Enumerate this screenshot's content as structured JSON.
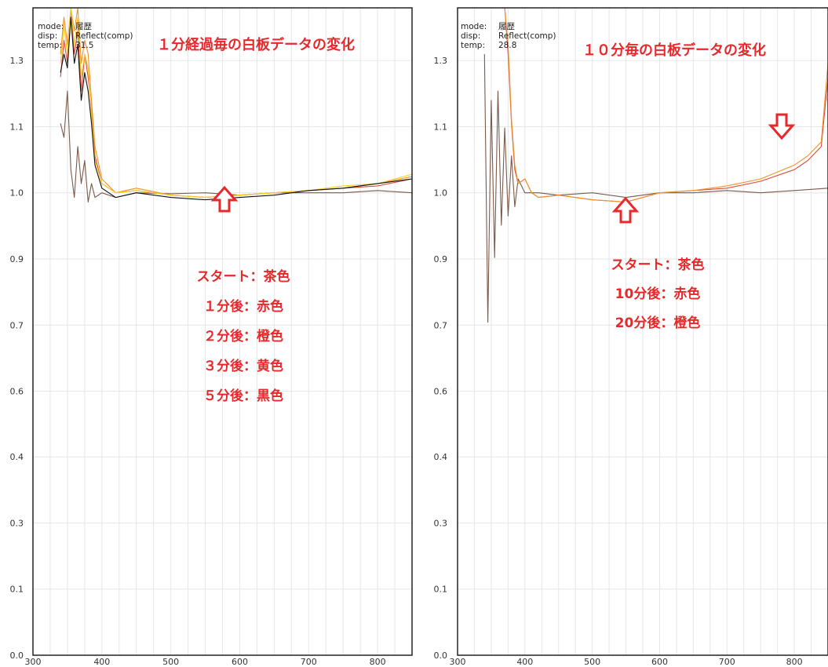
{
  "chart_data": [
    {
      "type": "line",
      "info": {
        "mode_label": "mode:",
        "mode_value": "履歴",
        "disp_label": "disp:",
        "disp_value": "Reflect(comp)",
        "temp_label": "temp:",
        "temp_value": "31.5"
      },
      "title": "１分経過毎の白板データの変化",
      "xlim": [
        300,
        850
      ],
      "ylim": [
        0,
        1.4
      ],
      "x_ticks": [
        "300",
        "400",
        "500",
        "600",
        "700",
        "800"
      ],
      "y_ticks": [
        "0.0",
        "0.1",
        "0.3",
        "0.4",
        "0.6",
        "0.7",
        "0.9",
        "1.0",
        "1.1",
        "1.3"
      ],
      "x_tick_values": [
        300,
        400,
        500,
        600,
        700,
        800
      ],
      "y_tick_values": [
        0.0,
        0.143,
        0.286,
        0.429,
        0.571,
        0.714,
        0.857,
        1.0,
        1.143,
        1.286
      ],
      "grid": true,
      "legend_notes": [
        "スタート：茶色",
        "１分後：赤色",
        "２分後：橙色",
        "３分後：黄色",
        "５分後：黒色"
      ],
      "series": [
        {
          "color": "#7a5a4a",
          "values": [
            [
              340,
              1.15
            ],
            [
              345,
              1.12
            ],
            [
              350,
              1.22
            ],
            [
              355,
              1.05
            ],
            [
              360,
              0.99
            ],
            [
              365,
              1.1
            ],
            [
              370,
              1.02
            ],
            [
              375,
              1.07
            ],
            [
              380,
              0.98
            ],
            [
              385,
              1.02
            ],
            [
              390,
              0.99
            ],
            [
              400,
              1.0
            ],
            [
              420,
              0.99
            ],
            [
              450,
              1.0
            ],
            [
              500,
              0.998
            ],
            [
              550,
              1.0
            ],
            [
              600,
              0.995
            ],
            [
              650,
              1.0
            ],
            [
              700,
              1.0
            ],
            [
              750,
              1.0
            ],
            [
              800,
              1.005
            ],
            [
              850,
              1.0
            ]
          ]
        },
        {
          "color": "#e04a3a",
          "values": [
            [
              340,
              1.25
            ],
            [
              345,
              1.33
            ],
            [
              350,
              1.28
            ],
            [
              355,
              1.4
            ],
            [
              360,
              1.3
            ],
            [
              365,
              1.35
            ],
            [
              370,
              1.22
            ],
            [
              375,
              1.3
            ],
            [
              380,
              1.25
            ],
            [
              385,
              1.18
            ],
            [
              390,
              1.08
            ],
            [
              400,
              1.02
            ],
            [
              420,
              1.0
            ],
            [
              450,
              1.005
            ],
            [
              500,
              0.995
            ],
            [
              550,
              0.99
            ],
            [
              600,
              0.995
            ],
            [
              650,
              1.0
            ],
            [
              700,
              1.005
            ],
            [
              750,
              1.01
            ],
            [
              800,
              1.015
            ],
            [
              850,
              1.03
            ]
          ]
        },
        {
          "color": "#f0922a",
          "values": [
            [
              340,
              1.3
            ],
            [
              345,
              1.38
            ],
            [
              350,
              1.32
            ],
            [
              355,
              1.4
            ],
            [
              360,
              1.35
            ],
            [
              365,
              1.4
            ],
            [
              370,
              1.28
            ],
            [
              375,
              1.33
            ],
            [
              380,
              1.3
            ],
            [
              385,
              1.2
            ],
            [
              390,
              1.1
            ],
            [
              400,
              1.03
            ],
            [
              420,
              1.0
            ],
            [
              450,
              1.01
            ],
            [
              500,
              0.995
            ],
            [
              550,
              0.99
            ],
            [
              600,
              0.995
            ],
            [
              650,
              1.0
            ],
            [
              700,
              1.005
            ],
            [
              750,
              1.01
            ],
            [
              800,
              1.02
            ],
            [
              850,
              1.035
            ]
          ]
        },
        {
          "color": "#f5d020",
          "values": [
            [
              340,
              1.28
            ],
            [
              345,
              1.36
            ],
            [
              350,
              1.3
            ],
            [
              355,
              1.4
            ],
            [
              360,
              1.32
            ],
            [
              365,
              1.38
            ],
            [
              370,
              1.25
            ],
            [
              375,
              1.3
            ],
            [
              380,
              1.27
            ],
            [
              385,
              1.17
            ],
            [
              390,
              1.07
            ],
            [
              400,
              1.02
            ],
            [
              420,
              1.0
            ],
            [
              450,
              1.005
            ],
            [
              500,
              0.995
            ],
            [
              550,
              0.99
            ],
            [
              600,
              0.995
            ],
            [
              650,
              1.0
            ],
            [
              700,
              1.005
            ],
            [
              750,
              1.015
            ],
            [
              800,
              1.02
            ],
            [
              850,
              1.04
            ]
          ]
        },
        {
          "color": "#111111",
          "values": [
            [
              340,
              1.26
            ],
            [
              345,
              1.3
            ],
            [
              350,
              1.27
            ],
            [
              355,
              1.38
            ],
            [
              360,
              1.28
            ],
            [
              365,
              1.32
            ],
            [
              370,
              1.2
            ],
            [
              375,
              1.26
            ],
            [
              380,
              1.22
            ],
            [
              385,
              1.15
            ],
            [
              390,
              1.06
            ],
            [
              400,
              1.01
            ],
            [
              420,
              0.99
            ],
            [
              450,
              1.0
            ],
            [
              500,
              0.99
            ],
            [
              550,
              0.985
            ],
            [
              600,
              0.99
            ],
            [
              650,
              0.995
            ],
            [
              700,
              1.005
            ],
            [
              750,
              1.01
            ],
            [
              800,
              1.02
            ],
            [
              850,
              1.03
            ]
          ]
        }
      ]
    },
    {
      "type": "line",
      "info": {
        "mode_label": "mode:",
        "mode_value": "履歴",
        "disp_label": "disp:",
        "disp_value": "Reflect(comp)",
        "temp_label": "temp:",
        "temp_value": "28.8"
      },
      "title": "１０分毎の白板データの変化",
      "xlim": [
        300,
        850
      ],
      "ylim": [
        0,
        1.4
      ],
      "x_ticks": [
        "300",
        "400",
        "500",
        "600",
        "700",
        "800"
      ],
      "y_ticks": [
        "0.0",
        "0.1",
        "0.3",
        "0.4",
        "0.6",
        "0.7",
        "0.9",
        "1.0",
        "1.1",
        "1.3"
      ],
      "x_tick_values": [
        300,
        400,
        500,
        600,
        700,
        800
      ],
      "y_tick_values": [
        0.0,
        0.143,
        0.286,
        0.429,
        0.571,
        0.714,
        0.857,
        1.0,
        1.143,
        1.286
      ],
      "grid": true,
      "legend_notes": [
        "スタート：茶色",
        "10分後：赤色",
        "20分後：橙色"
      ],
      "series": [
        {
          "color": "#7a5a4a",
          "values": [
            [
              340,
              1.3
            ],
            [
              345,
              0.72
            ],
            [
              350,
              1.2
            ],
            [
              355,
              0.86
            ],
            [
              360,
              1.22
            ],
            [
              365,
              0.93
            ],
            [
              370,
              1.14
            ],
            [
              375,
              0.95
            ],
            [
              380,
              1.08
            ],
            [
              385,
              0.97
            ],
            [
              390,
              1.03
            ],
            [
              400,
              1.0
            ],
            [
              420,
              1.0
            ],
            [
              450,
              0.995
            ],
            [
              500,
              1.0
            ],
            [
              550,
              0.99
            ],
            [
              600,
              1.0
            ],
            [
              650,
              1.0
            ],
            [
              700,
              1.005
            ],
            [
              750,
              1.0
            ],
            [
              800,
              1.005
            ],
            [
              850,
              1.01
            ]
          ]
        },
        {
          "color": "#e04a3a",
          "values": [
            [
              340,
              1.4
            ],
            [
              345,
              1.4
            ],
            [
              350,
              1.4
            ],
            [
              360,
              1.4
            ],
            [
              370,
              1.4
            ],
            [
              375,
              1.3
            ],
            [
              380,
              1.15
            ],
            [
              385,
              1.05
            ],
            [
              390,
              1.02
            ],
            [
              400,
              1.03
            ],
            [
              410,
              1.0
            ],
            [
              420,
              0.99
            ],
            [
              450,
              0.995
            ],
            [
              500,
              0.985
            ],
            [
              550,
              0.98
            ],
            [
              600,
              1.0
            ],
            [
              650,
              1.005
            ],
            [
              700,
              1.01
            ],
            [
              750,
              1.025
            ],
            [
              800,
              1.05
            ],
            [
              820,
              1.07
            ],
            [
              840,
              1.1
            ],
            [
              850,
              1.25
            ]
          ]
        },
        {
          "color": "#f0922a",
          "values": [
            [
              340,
              1.4
            ],
            [
              345,
              1.4
            ],
            [
              350,
              1.4
            ],
            [
              360,
              1.4
            ],
            [
              370,
              1.4
            ],
            [
              375,
              1.32
            ],
            [
              380,
              1.16
            ],
            [
              385,
              1.06
            ],
            [
              390,
              1.02
            ],
            [
              400,
              1.03
            ],
            [
              410,
              1.0
            ],
            [
              420,
              0.99
            ],
            [
              450,
              0.995
            ],
            [
              500,
              0.985
            ],
            [
              550,
              0.98
            ],
            [
              600,
              1.0
            ],
            [
              650,
              1.005
            ],
            [
              700,
              1.015
            ],
            [
              750,
              1.03
            ],
            [
              800,
              1.06
            ],
            [
              820,
              1.08
            ],
            [
              840,
              1.11
            ],
            [
              850,
              1.28
            ]
          ]
        }
      ]
    }
  ]
}
